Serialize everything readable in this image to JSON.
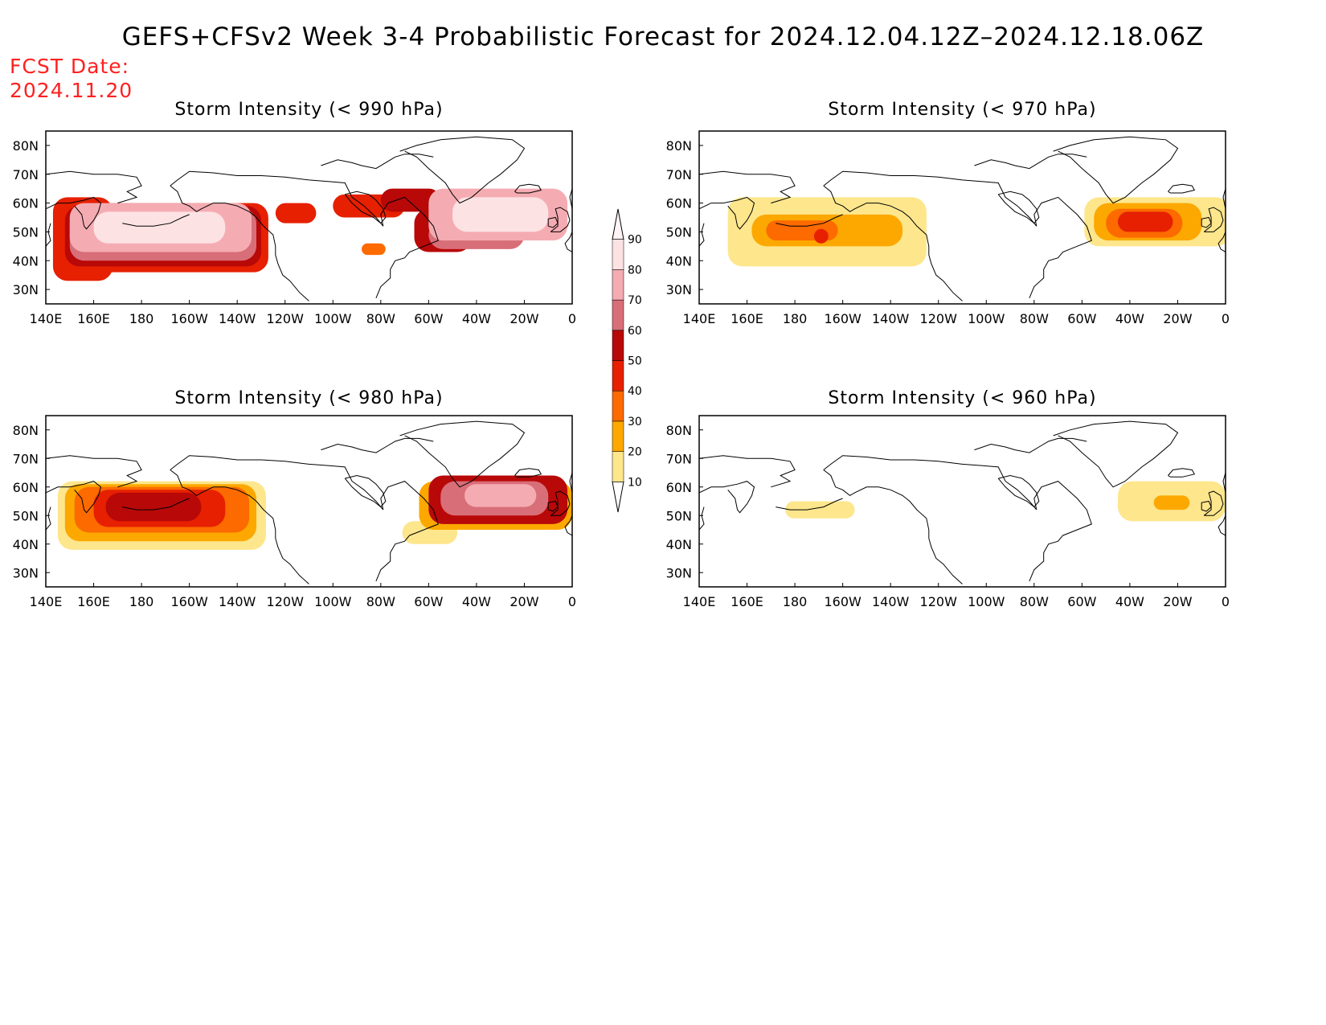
{
  "title": "GEFS+CFSv2 Week 3-4 Probabilistic Forecast for 2024.12.04.12Z–2024.12.18.06Z",
  "fcst_date_label": "FCST Date:",
  "fcst_date_value": "2024.11.20",
  "colors": {
    "levels": [
      "#fff6c0",
      "#fde68c",
      "#fca800",
      "#fc6a00",
      "#e62000",
      "#b80808",
      "#d86e78",
      "#f4acb2",
      "#fde2e4"
    ],
    "coast": "#000000",
    "frame": "#000000"
  },
  "colorbar": {
    "tick_labels": [
      "10",
      "20",
      "30",
      "40",
      "50",
      "60",
      "70",
      "80",
      "90"
    ]
  },
  "axes": {
    "lon_labels": [
      "140E",
      "160E",
      "180",
      "160W",
      "140W",
      "120W",
      "100W",
      "80W",
      "60W",
      "40W",
      "20W",
      "0"
    ],
    "lon_values": [
      140,
      160,
      180,
      200,
      220,
      240,
      260,
      280,
      300,
      320,
      340,
      360
    ],
    "lat_labels": [
      "80N",
      "70N",
      "60N",
      "50N",
      "40N",
      "30N"
    ],
    "lat_values": [
      80,
      70,
      60,
      50,
      40,
      30
    ],
    "lon_range": [
      140,
      360
    ],
    "lat_range": [
      25,
      85
    ]
  },
  "panels": [
    {
      "title": "Storm Intensity (< 990 hPa)",
      "regions": [
        {
          "level": 4,
          "lon": [
            143,
            168
          ],
          "lat": [
            33,
            62
          ]
        },
        {
          "level": 4,
          "lon": [
            145,
            233
          ],
          "lat": [
            36,
            60
          ]
        },
        {
          "level": 5,
          "lon": [
            148,
            230
          ],
          "lat": [
            38,
            59
          ]
        },
        {
          "level": 6,
          "lon": [
            150,
            228
          ],
          "lat": [
            40,
            58
          ]
        },
        {
          "level": 7,
          "lon": [
            150,
            226
          ],
          "lat": [
            43,
            60
          ]
        },
        {
          "level": 8,
          "lon": [
            160,
            215
          ],
          "lat": [
            46,
            57
          ]
        },
        {
          "level": 4,
          "lon": [
            236,
            253
          ],
          "lat": [
            53,
            60
          ]
        },
        {
          "level": 4,
          "lon": [
            260,
            290
          ],
          "lat": [
            55,
            63
          ]
        },
        {
          "level": 5,
          "lon": [
            280,
            305
          ],
          "lat": [
            57,
            65
          ]
        },
        {
          "level": 3,
          "lon": [
            272,
            282
          ],
          "lat": [
            42,
            46
          ]
        },
        {
          "level": 5,
          "lon": [
            294,
            318
          ],
          "lat": [
            43,
            58
          ]
        },
        {
          "level": 6,
          "lon": [
            300,
            340
          ],
          "lat": [
            44,
            54
          ]
        },
        {
          "level": 7,
          "lon": [
            300,
            358
          ],
          "lat": [
            47,
            65
          ]
        },
        {
          "level": 8,
          "lon": [
            310,
            350
          ],
          "lat": [
            50,
            62
          ]
        }
      ]
    },
    {
      "title": "Storm Intensity (< 970 hPa)",
      "regions": [
        {
          "level": 1,
          "lon": [
            152,
            235
          ],
          "lat": [
            38,
            62
          ]
        },
        {
          "level": 2,
          "lon": [
            162,
            225
          ],
          "lat": [
            45,
            56
          ]
        },
        {
          "level": 3,
          "lon": [
            168,
            198
          ],
          "lat": [
            47,
            54
          ]
        },
        {
          "level": 4,
          "lon": [
            188,
            194
          ],
          "lat": [
            46,
            51
          ]
        },
        {
          "level": 1,
          "lon": [
            301,
            362
          ],
          "lat": [
            45,
            62
          ]
        },
        {
          "level": 2,
          "lon": [
            305,
            350
          ],
          "lat": [
            47,
            60
          ]
        },
        {
          "level": 3,
          "lon": [
            310,
            342
          ],
          "lat": [
            48,
            58
          ]
        },
        {
          "level": 4,
          "lon": [
            315,
            338
          ],
          "lat": [
            50,
            57
          ]
        }
      ]
    },
    {
      "title": "Storm Intensity (< 980 hPa)",
      "regions": [
        {
          "level": 1,
          "lon": [
            145,
            232
          ],
          "lat": [
            38,
            62
          ]
        },
        {
          "level": 2,
          "lon": [
            148,
            228
          ],
          "lat": [
            41,
            61
          ]
        },
        {
          "level": 3,
          "lon": [
            152,
            225
          ],
          "lat": [
            44,
            60
          ]
        },
        {
          "level": 4,
          "lon": [
            160,
            215
          ],
          "lat": [
            46,
            59
          ]
        },
        {
          "level": 5,
          "lon": [
            165,
            205
          ],
          "lat": [
            48,
            58
          ]
        },
        {
          "level": 1,
          "lon": [
            289,
            312
          ],
          "lat": [
            40,
            48
          ]
        },
        {
          "level": 2,
          "lon": [
            296,
            360
          ],
          "lat": [
            45,
            62
          ]
        },
        {
          "level": 5,
          "lon": [
            300,
            358
          ],
          "lat": [
            47,
            64
          ]
        },
        {
          "level": 6,
          "lon": [
            305,
            350
          ],
          "lat": [
            50,
            62
          ]
        },
        {
          "level": 7,
          "lon": [
            315,
            345
          ],
          "lat": [
            53,
            61
          ]
        }
      ]
    },
    {
      "title": "Storm Intensity (< 960 hPa)",
      "regions": [
        {
          "level": 1,
          "lon": [
            176,
            205
          ],
          "lat": [
            49,
            55
          ]
        },
        {
          "level": 1,
          "lon": [
            315,
            360
          ],
          "lat": [
            48,
            62
          ]
        },
        {
          "level": 2,
          "lon": [
            330,
            345
          ],
          "lat": [
            52,
            57
          ]
        }
      ]
    }
  ]
}
